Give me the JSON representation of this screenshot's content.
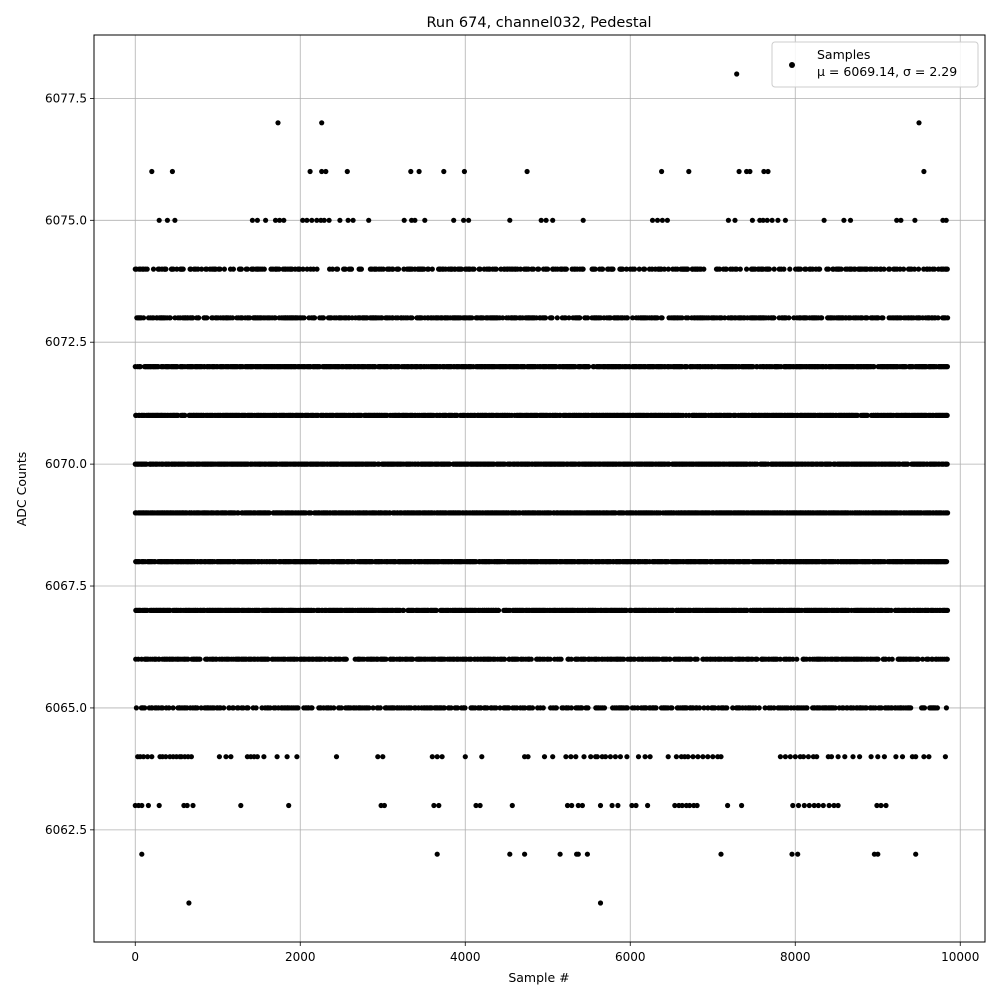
{
  "chart_data": {
    "type": "scatter",
    "title": "Run 674, channel032, Pedestal",
    "xlabel": "Sample #",
    "ylabel": "ADC Counts",
    "xlim": [
      -500,
      10300
    ],
    "ylim": [
      6060.2,
      6078.8
    ],
    "xticks": [
      0,
      2000,
      4000,
      6000,
      8000,
      10000
    ],
    "xtick_labels": [
      "0",
      "2000",
      "4000",
      "6000",
      "8000",
      "10000"
    ],
    "yticks": [
      6062.5,
      6065.0,
      6067.5,
      6070.0,
      6072.5,
      6075.0,
      6077.5
    ],
    "ytick_labels": [
      "6062.5",
      "6065.0",
      "6067.5",
      "6070.0",
      "6072.5",
      "6075.0",
      "6077.5"
    ],
    "grid": true,
    "legend_position": "top-right",
    "colors": {
      "points": "#000000",
      "grid": "#b0b0b0"
    },
    "series": [
      {
        "name": "Samples",
        "stats_label": "μ = 6069.14, σ = 2.29",
        "mean": 6069.14,
        "sigma": 2.29,
        "x_range": [
          0,
          9850
        ],
        "n_samples": 9850,
        "levels": [
          {
            "y": 6062,
            "samples": [
              80,
              4540,
              4720,
              5150,
              5350,
              5370,
              5480,
              7100,
              7960,
              8030,
              8960,
              9000,
              9460,
              3660
            ]
          },
          {
            "y": 6061,
            "samples": [
              650,
              5640
            ]
          },
          {
            "y": 6077,
            "samples": [
              1730,
              2260,
              9500
            ]
          },
          {
            "y": 6078,
            "samples": [
              7290
            ]
          },
          {
            "y": 6076,
            "samples": [
              200,
              450,
              2120,
              2260,
              2310,
              2570,
              3340,
              3440,
              3740,
              3990,
              4750,
              6380,
              6710,
              7320,
              7410,
              7450,
              7620,
              7670,
              9560
            ]
          },
          {
            "y": 6075,
            "samples": [
              290,
              390,
              480,
              1420,
              1480,
              1580,
              1700,
              1750,
              1800,
              2030,
              2080,
              2140,
              2200,
              2250,
              2290,
              2350,
              2480,
              2580,
              2640,
              2830,
              3260,
              3350,
              3390,
              3510,
              3860,
              3980,
              4040,
              4540,
              4920,
              4980,
              5060,
              5430,
              6270,
              6330,
              6390,
              6450,
              7190,
              7270,
              7480,
              7570,
              7610,
              7660,
              7720,
              7790,
              7880,
              8350,
              8590,
              8670,
              9230,
              9280,
              9450,
              9790,
              9830
            ]
          },
          {
            "y": 6064,
            "samples": [
              30,
              60,
              100,
              150,
              200,
              300,
              330,
              370,
              420,
              460,
              500,
              540,
              560,
              600,
              640,
              680,
              1020,
              1100,
              1160,
              1360,
              1400,
              1440,
              1480,
              1560,
              1720,
              1840,
              1960,
              2440,
              2940,
              3000,
              3600,
              3660,
              3720,
              4000,
              4200,
              4720,
              4760,
              4960,
              5060,
              5220,
              5280,
              5340,
              5440,
              5520,
              5580,
              5600,
              5660,
              5700,
              5760,
              5820,
              5880,
              5960,
              6100,
              6180,
              6240,
              6460,
              6560,
              6620,
              6660,
              6700,
              6760,
              6820,
              6880,
              6940,
              7000,
              7060,
              7100,
              7820,
              7880,
              7940,
              8000,
              8060,
              8100,
              8160,
              8220,
              8260,
              8400,
              8440,
              8520,
              8600,
              8700,
              8780,
              8920,
              9000,
              9080,
              9220,
              9300,
              9420,
              9460,
              9560,
              9620,
              9820
            ]
          },
          {
            "y": 6063,
            "samples": [
              0,
              40,
              80,
              160,
              290,
              590,
              630,
              700,
              1280,
              1860,
              2980,
              3020,
              3620,
              3680,
              4130,
              4180,
              4570,
              5240,
              5290,
              5370,
              5420,
              5640,
              5780,
              5850,
              6020,
              6070,
              6210,
              6540,
              6590,
              6630,
              6680,
              6720,
              6770,
              6810,
              7180,
              7350,
              7970,
              8040,
              8110,
              8170,
              8230,
              8280,
              8340,
              8410,
              8470,
              8520,
              8990,
              9040,
              9100
            ]
          }
        ],
        "dense_levels": [
          {
            "y": 6065,
            "density": 0.55
          },
          {
            "y": 6066,
            "density": 0.75
          },
          {
            "y": 6067,
            "density": 1.0
          },
          {
            "y": 6068,
            "density": 1.0
          },
          {
            "y": 6069,
            "density": 1.0
          },
          {
            "y": 6070,
            "density": 1.0
          },
          {
            "y": 6071,
            "density": 1.0
          },
          {
            "y": 6072,
            "density": 0.95
          },
          {
            "y": 6073,
            "density": 0.7
          },
          {
            "y": 6074,
            "density": 0.45
          }
        ]
      }
    ]
  }
}
